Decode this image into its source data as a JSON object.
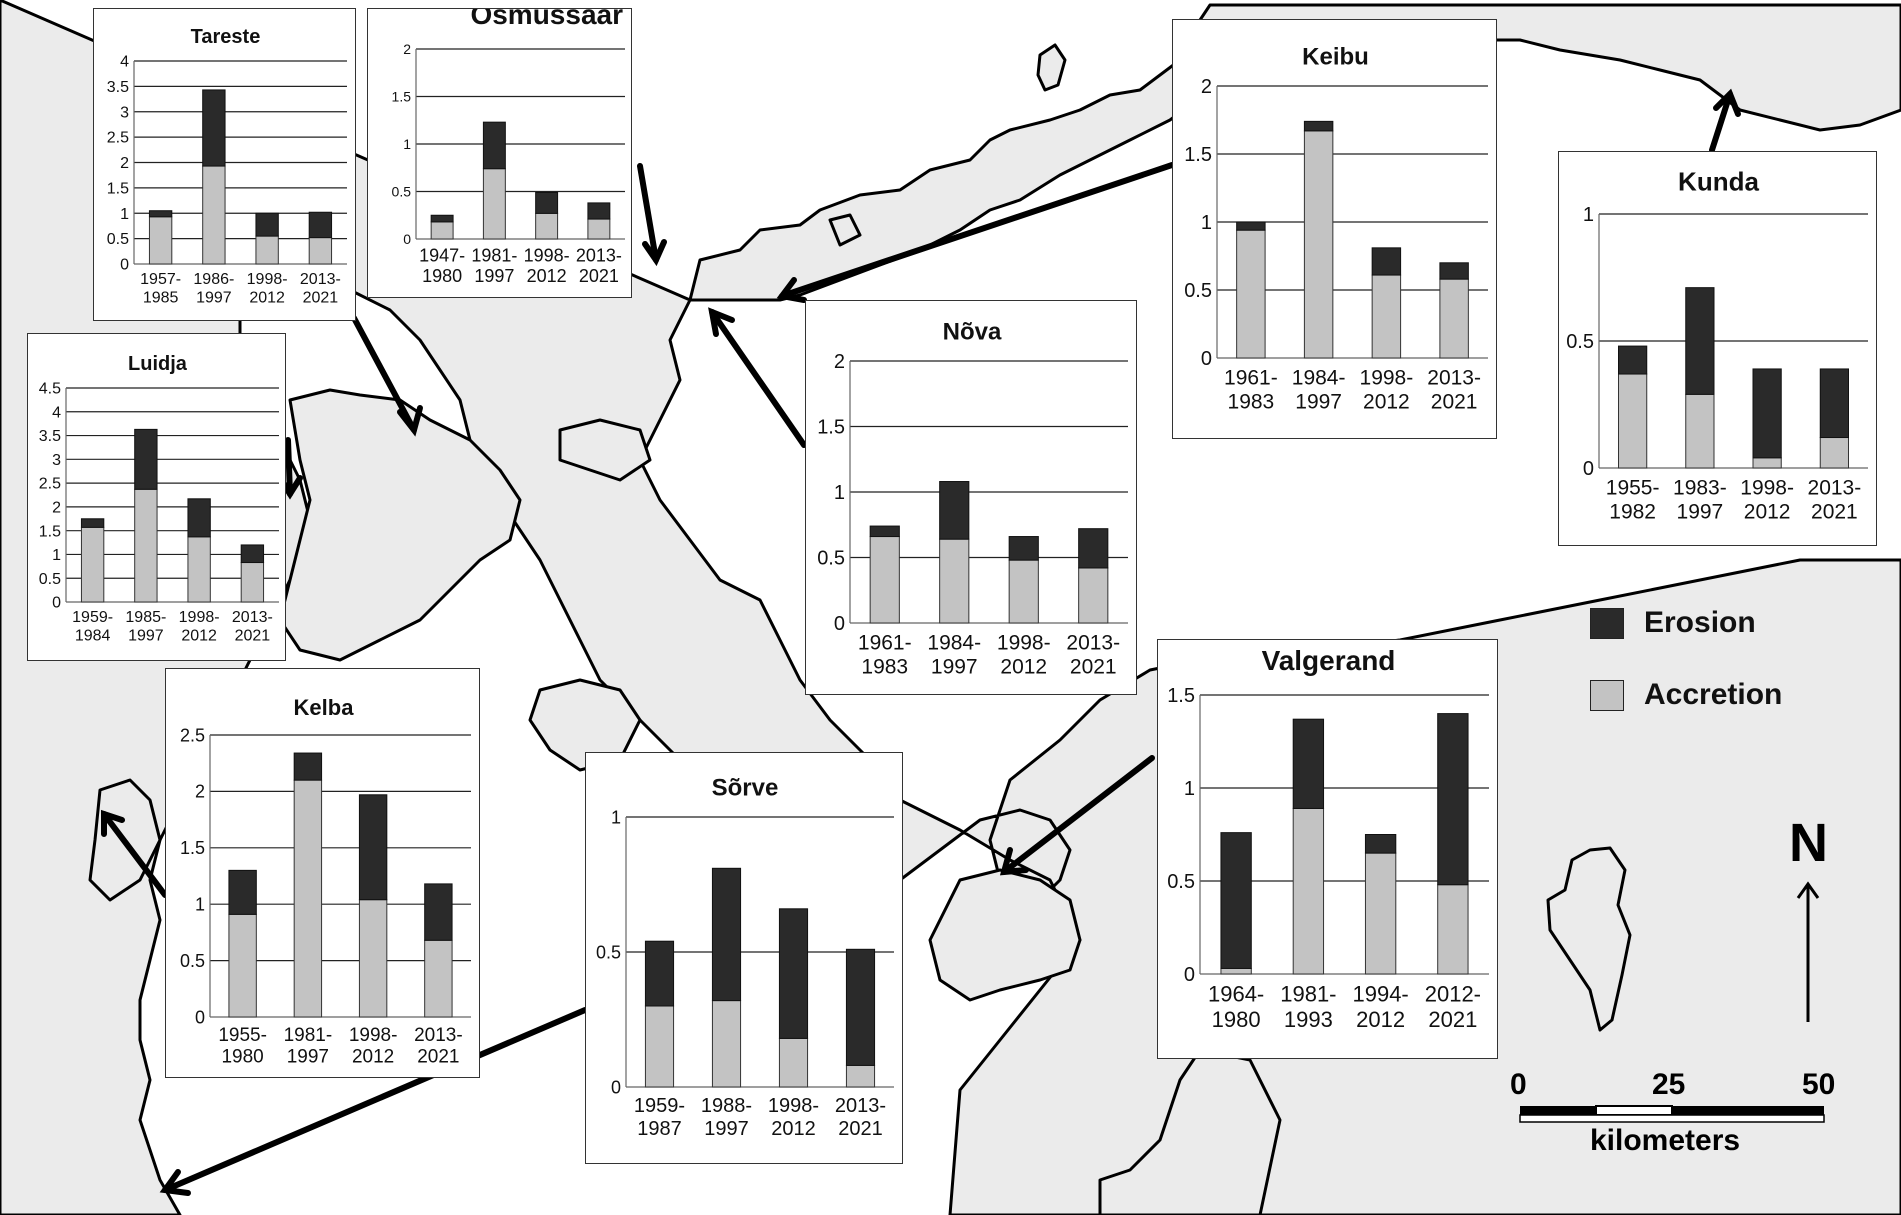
{
  "colors": {
    "land": "#ebebeb",
    "coast": "#000000",
    "erosion": "#2a2a2a",
    "accretion": "#c3c3c3"
  },
  "legend": {
    "erosion_label": "Erosion",
    "accretion_label": "Accretion"
  },
  "north": {
    "label": "N"
  },
  "scale_bar": {
    "ticks": [
      "0",
      "25",
      "50"
    ],
    "unit": "kilometers"
  },
  "chart_data": [
    {
      "id": "tareste",
      "type": "bar",
      "stacked": true,
      "title": "Tareste",
      "categories": [
        "1957-1985",
        "1986-1997",
        "1998-2012",
        "2013-2021"
      ],
      "ylim": [
        0,
        4
      ],
      "yticks": [
        "0",
        "0.5",
        "1",
        "1.5",
        "2",
        "2.5",
        "3",
        "3.5",
        "4"
      ],
      "series": [
        {
          "name": "Accretion",
          "values": [
            0.93,
            1.93,
            0.55,
            0.52
          ]
        },
        {
          "name": "Erosion",
          "values": [
            0.12,
            1.5,
            0.45,
            0.5
          ]
        }
      ]
    },
    {
      "id": "osmussaar",
      "type": "bar",
      "stacked": true,
      "title": "Osmussaar",
      "categories": [
        "1947-1980",
        "1981-1997",
        "1998-2012",
        "2013-2021"
      ],
      "ylim": [
        0,
        2
      ],
      "yticks": [
        "0",
        "0.5",
        "1",
        "1.5",
        "2"
      ],
      "series": [
        {
          "name": "Accretion",
          "values": [
            0.18,
            0.74,
            0.27,
            0.21
          ]
        },
        {
          "name": "Erosion",
          "values": [
            0.07,
            0.49,
            0.22,
            0.17
          ]
        }
      ]
    },
    {
      "id": "luidja",
      "type": "bar",
      "stacked": true,
      "title": "Luidja",
      "categories": [
        "1959-1984",
        "1985-1997",
        "1998-2012",
        "2013-2021"
      ],
      "ylim": [
        0,
        4.5
      ],
      "yticks": [
        "0",
        "0.5",
        "1",
        "1.5",
        "2",
        "2.5",
        "3",
        "3.5",
        "4",
        "4.5"
      ],
      "series": [
        {
          "name": "Accretion",
          "values": [
            1.57,
            2.37,
            1.37,
            0.83
          ]
        },
        {
          "name": "Erosion",
          "values": [
            0.18,
            1.26,
            0.8,
            0.37
          ]
        }
      ]
    },
    {
      "id": "kelba",
      "type": "bar",
      "stacked": true,
      "title": "Kelba",
      "categories": [
        "1955-1980",
        "1981-1997",
        "1998-2012",
        "2013-2021"
      ],
      "ylim": [
        0,
        2.5
      ],
      "yticks": [
        "0",
        "0.5",
        "1",
        "1.5",
        "2",
        "2.5"
      ],
      "series": [
        {
          "name": "Accretion",
          "values": [
            0.91,
            2.1,
            1.04,
            0.68
          ]
        },
        {
          "name": "Erosion",
          "values": [
            0.39,
            0.24,
            0.93,
            0.5
          ]
        }
      ]
    },
    {
      "id": "sorve",
      "type": "bar",
      "stacked": true,
      "title": "Sõrve",
      "categories": [
        "1959-1987",
        "1988-1997",
        "1998-2012",
        "2013-2021"
      ],
      "ylim": [
        0,
        1
      ],
      "yticks": [
        "0",
        "0.5",
        "1"
      ],
      "series": [
        {
          "name": "Accretion",
          "values": [
            0.3,
            0.32,
            0.18,
            0.08
          ]
        },
        {
          "name": "Erosion",
          "values": [
            0.24,
            0.49,
            0.48,
            0.43
          ]
        }
      ]
    },
    {
      "id": "nova",
      "type": "bar",
      "stacked": true,
      "title": "Nõva",
      "categories": [
        "1961-1983",
        "1984-1997",
        "1998-2012",
        "2013-2021"
      ],
      "ylim": [
        0,
        2
      ],
      "yticks": [
        "0",
        "0.5",
        "1",
        "1.5",
        "2"
      ],
      "series": [
        {
          "name": "Accretion",
          "values": [
            0.66,
            0.64,
            0.48,
            0.42
          ]
        },
        {
          "name": "Erosion",
          "values": [
            0.08,
            0.44,
            0.18,
            0.3
          ]
        }
      ]
    },
    {
      "id": "keibu",
      "type": "bar",
      "stacked": true,
      "title": "Keibu",
      "categories": [
        "1961-1983",
        "1984-1997",
        "1998-2012",
        "2013-2021"
      ],
      "ylim": [
        0,
        2
      ],
      "yticks": [
        "0",
        "0.5",
        "1",
        "1.5",
        "2"
      ],
      "series": [
        {
          "name": "Accretion",
          "values": [
            0.94,
            1.67,
            0.61,
            0.58
          ]
        },
        {
          "name": "Erosion",
          "values": [
            0.06,
            0.07,
            0.2,
            0.12
          ]
        }
      ]
    },
    {
      "id": "kunda",
      "type": "bar",
      "stacked": true,
      "title": "Kunda",
      "categories": [
        "1955-1982",
        "1983-1997",
        "1998-2012",
        "2013-2021"
      ],
      "ylim": [
        0,
        1
      ],
      "yticks": [
        "0",
        "0.5",
        "1"
      ],
      "series": [
        {
          "name": "Accretion",
          "values": [
            0.37,
            0.29,
            0.04,
            0.12
          ]
        },
        {
          "name": "Erosion",
          "values": [
            0.11,
            0.42,
            0.35,
            0.27
          ]
        }
      ]
    },
    {
      "id": "valgerand",
      "type": "bar",
      "stacked": true,
      "title": "Valgerand",
      "categories": [
        "1964-1980",
        "1981-1993",
        "1994-2012",
        "2012-2021"
      ],
      "ylim": [
        0,
        1.5
      ],
      "yticks": [
        "0",
        "0.5",
        "1",
        "1.5"
      ],
      "series": [
        {
          "name": "Accretion",
          "values": [
            0.03,
            0.89,
            0.65,
            0.48
          ]
        },
        {
          "name": "Erosion",
          "values": [
            0.73,
            0.48,
            0.1,
            0.92
          ]
        }
      ]
    }
  ]
}
